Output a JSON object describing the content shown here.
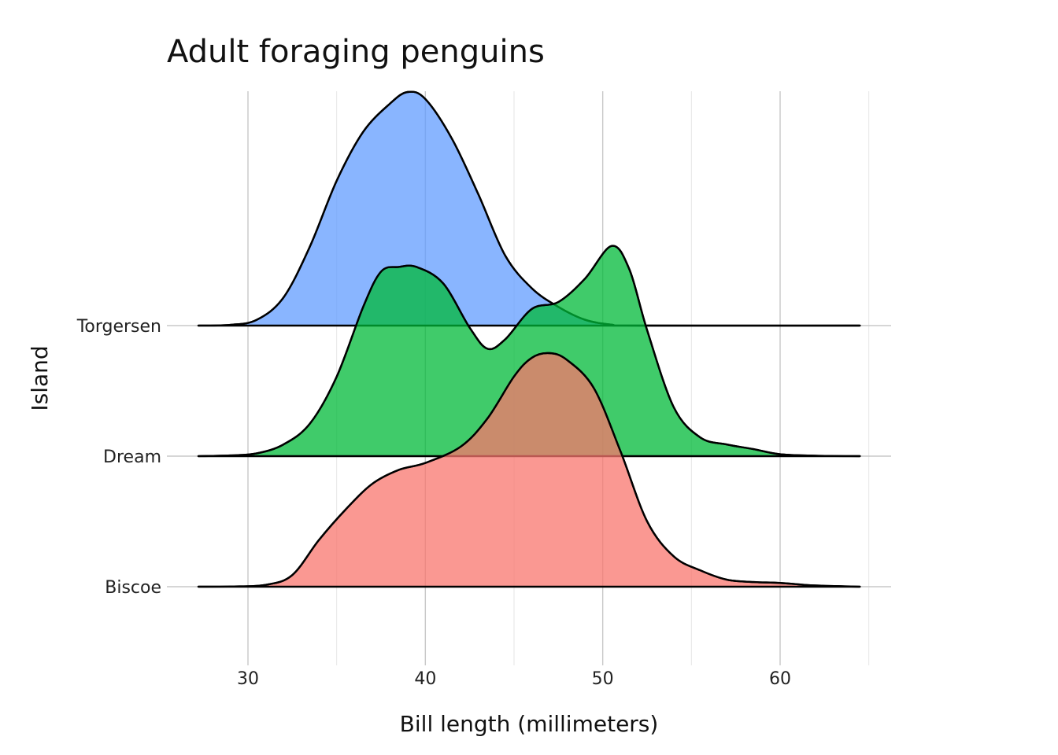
{
  "chart_data": {
    "type": "area",
    "subtype": "ridgeline",
    "title": "Adult foraging penguins",
    "xlabel": "Bill length (millimeters)",
    "ylabel": "Island",
    "xlim": [
      25.5,
      66
    ],
    "x_ticks": [
      30,
      40,
      50,
      60
    ],
    "x_tick_labels": [
      "30",
      "40",
      "50",
      "60"
    ],
    "x_minor_ticks": [
      35,
      45,
      55,
      65
    ],
    "x_range": [
      27.2,
      64.5
    ],
    "categories": [
      "Biscoe",
      "Dream",
      "Torgersen"
    ],
    "grid": true,
    "legend": "none",
    "series": [
      {
        "name": "Biscoe",
        "color": "#F8766D",
        "points": [
          [
            27.2,
            0
          ],
          [
            29,
            0.001
          ],
          [
            31,
            0.008
          ],
          [
            32.5,
            0.05
          ],
          [
            34,
            0.2
          ],
          [
            35.5,
            0.33
          ],
          [
            37,
            0.44
          ],
          [
            38.5,
            0.5
          ],
          [
            40,
            0.53
          ],
          [
            42,
            0.6
          ],
          [
            43.5,
            0.72
          ],
          [
            45,
            0.9
          ],
          [
            46,
            0.98
          ],
          [
            47,
            1.0
          ],
          [
            48,
            0.97
          ],
          [
            49.5,
            0.85
          ],
          [
            51,
            0.58
          ],
          [
            52.5,
            0.28
          ],
          [
            54,
            0.13
          ],
          [
            55.5,
            0.07
          ],
          [
            57,
            0.03
          ],
          [
            58.5,
            0.02
          ],
          [
            60,
            0.016
          ],
          [
            62,
            0.005
          ],
          [
            64.5,
            0
          ]
        ]
      },
      {
        "name": "Dream",
        "color": "#00BA38",
        "points": [
          [
            27.2,
            0
          ],
          [
            29,
            0.003
          ],
          [
            30.5,
            0.012
          ],
          [
            32,
            0.05
          ],
          [
            33.5,
            0.14
          ],
          [
            35,
            0.34
          ],
          [
            36.5,
            0.64
          ],
          [
            37.5,
            0.79
          ],
          [
            38.5,
            0.81
          ],
          [
            39.5,
            0.81
          ],
          [
            41,
            0.74
          ],
          [
            42.5,
            0.55
          ],
          [
            43.5,
            0.46
          ],
          [
            44.5,
            0.5
          ],
          [
            46,
            0.63
          ],
          [
            47.5,
            0.66
          ],
          [
            49,
            0.76
          ],
          [
            50.5,
            0.9
          ],
          [
            51.5,
            0.8
          ],
          [
            52.5,
            0.54
          ],
          [
            54,
            0.21
          ],
          [
            55.5,
            0.08
          ],
          [
            57,
            0.05
          ],
          [
            58.5,
            0.03
          ],
          [
            60,
            0.008
          ],
          [
            62,
            0.002
          ],
          [
            64.5,
            0
          ]
        ]
      },
      {
        "name": "Torgersen",
        "color": "#619CFF",
        "points": [
          [
            27.2,
            0
          ],
          [
            29,
            0.003
          ],
          [
            30.5,
            0.025
          ],
          [
            32,
            0.12
          ],
          [
            33.5,
            0.34
          ],
          [
            35,
            0.62
          ],
          [
            36.5,
            0.83
          ],
          [
            38,
            0.95
          ],
          [
            39,
            1.0
          ],
          [
            40,
            0.97
          ],
          [
            41.5,
            0.8
          ],
          [
            43,
            0.56
          ],
          [
            44.5,
            0.3
          ],
          [
            46,
            0.16
          ],
          [
            47.5,
            0.08
          ],
          [
            49,
            0.025
          ],
          [
            50.5,
            0.004
          ],
          [
            52,
            0
          ],
          [
            64.5,
            0
          ]
        ]
      }
    ]
  }
}
